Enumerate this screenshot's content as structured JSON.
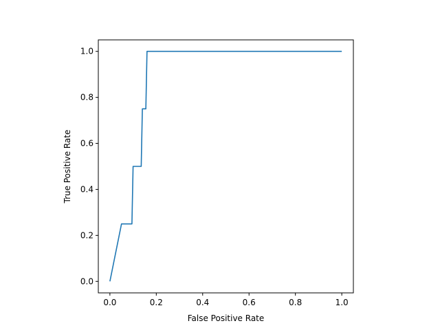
{
  "chart_data": {
    "type": "line",
    "title": "",
    "xlabel": "False Positive Rate",
    "ylabel": "True Positive Rate",
    "xlim": [
      -0.05,
      1.05
    ],
    "ylim": [
      -0.05,
      1.05
    ],
    "grid": false,
    "line_color": "#1f77b4",
    "x_ticks": [
      {
        "value": 0.0,
        "label": "0.0"
      },
      {
        "value": 0.2,
        "label": "0.2"
      },
      {
        "value": 0.4,
        "label": "0.4"
      },
      {
        "value": 0.6,
        "label": "0.6"
      },
      {
        "value": 0.8,
        "label": "0.8"
      },
      {
        "value": 1.0,
        "label": "1.0"
      }
    ],
    "y_ticks": [
      {
        "value": 0.0,
        "label": "0.0"
      },
      {
        "value": 0.2,
        "label": "0.2"
      },
      {
        "value": 0.4,
        "label": "0.4"
      },
      {
        "value": 0.6,
        "label": "0.6"
      },
      {
        "value": 0.8,
        "label": "0.8"
      },
      {
        "value": 1.0,
        "label": "1.0"
      }
    ],
    "series": [
      {
        "x": [
          0.0,
          0.05,
          0.095,
          0.1,
          0.135,
          0.14,
          0.155,
          0.16,
          1.0
        ],
        "y": [
          0.0,
          0.25,
          0.25,
          0.5,
          0.5,
          0.75,
          0.75,
          1.0,
          1.0
        ]
      }
    ]
  }
}
